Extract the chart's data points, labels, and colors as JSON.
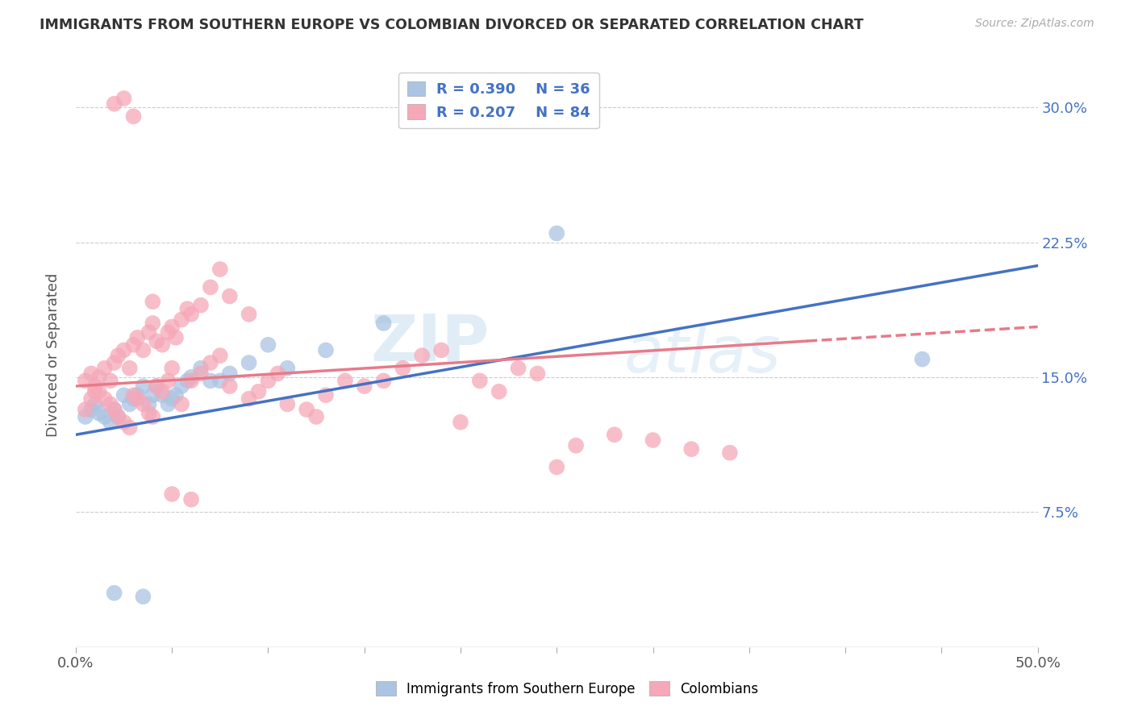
{
  "title": "IMMIGRANTS FROM SOUTHERN EUROPE VS COLOMBIAN DIVORCED OR SEPARATED CORRELATION CHART",
  "source": "Source: ZipAtlas.com",
  "ylabel": "Divorced or Separated",
  "ytick_labels": [
    "30.0%",
    "22.5%",
    "15.0%",
    "7.5%"
  ],
  "ytick_values": [
    0.3,
    0.225,
    0.15,
    0.075
  ],
  "xmin": 0.0,
  "xmax": 0.5,
  "ymin": 0.0,
  "ymax": 0.325,
  "legend1_r": "R = 0.390",
  "legend1_n": "N = 36",
  "legend2_r": "R = 0.207",
  "legend2_n": "N = 84",
  "color_blue": "#aac4e2",
  "color_pink": "#f5a8b8",
  "line_blue": "#4472C4",
  "line_pink": "#e87a8a",
  "watermark": "ZIPAtlas",
  "blue_x": [
    0.005,
    0.008,
    0.01,
    0.012,
    0.015,
    0.018,
    0.02,
    0.022,
    0.025,
    0.028,
    0.03,
    0.032,
    0.035,
    0.038,
    0.04,
    0.042,
    0.045,
    0.048,
    0.05,
    0.052,
    0.055,
    0.058,
    0.06,
    0.065,
    0.07,
    0.075,
    0.08,
    0.09,
    0.1,
    0.11,
    0.13,
    0.16,
    0.25,
    0.44,
    0.02,
    0.035
  ],
  "blue_y": [
    0.128,
    0.132,
    0.135,
    0.13,
    0.128,
    0.125,
    0.132,
    0.128,
    0.14,
    0.135,
    0.138,
    0.14,
    0.145,
    0.135,
    0.14,
    0.145,
    0.14,
    0.135,
    0.138,
    0.14,
    0.145,
    0.148,
    0.15,
    0.155,
    0.148,
    0.148,
    0.152,
    0.158,
    0.168,
    0.155,
    0.165,
    0.18,
    0.23,
    0.16,
    0.03,
    0.028
  ],
  "pink_x": [
    0.005,
    0.008,
    0.01,
    0.012,
    0.015,
    0.018,
    0.02,
    0.022,
    0.025,
    0.028,
    0.03,
    0.032,
    0.035,
    0.038,
    0.04,
    0.042,
    0.045,
    0.048,
    0.05,
    0.052,
    0.055,
    0.058,
    0.06,
    0.065,
    0.005,
    0.008,
    0.01,
    0.012,
    0.015,
    0.018,
    0.02,
    0.022,
    0.025,
    0.028,
    0.03,
    0.032,
    0.035,
    0.038,
    0.04,
    0.042,
    0.045,
    0.048,
    0.05,
    0.055,
    0.06,
    0.065,
    0.07,
    0.075,
    0.08,
    0.09,
    0.095,
    0.1,
    0.105,
    0.11,
    0.12,
    0.125,
    0.13,
    0.14,
    0.15,
    0.16,
    0.17,
    0.18,
    0.19,
    0.2,
    0.21,
    0.22,
    0.23,
    0.24,
    0.25,
    0.26,
    0.28,
    0.3,
    0.32,
    0.34,
    0.07,
    0.075,
    0.08,
    0.09,
    0.02,
    0.025,
    0.03,
    0.04,
    0.05,
    0.06
  ],
  "pink_y": [
    0.132,
    0.138,
    0.142,
    0.15,
    0.155,
    0.148,
    0.158,
    0.162,
    0.165,
    0.155,
    0.168,
    0.172,
    0.165,
    0.175,
    0.18,
    0.17,
    0.168,
    0.175,
    0.178,
    0.172,
    0.182,
    0.188,
    0.185,
    0.19,
    0.148,
    0.152,
    0.145,
    0.142,
    0.138,
    0.135,
    0.132,
    0.128,
    0.125,
    0.122,
    0.14,
    0.138,
    0.135,
    0.13,
    0.128,
    0.145,
    0.142,
    0.148,
    0.155,
    0.135,
    0.148,
    0.152,
    0.158,
    0.162,
    0.145,
    0.138,
    0.142,
    0.148,
    0.152,
    0.135,
    0.132,
    0.128,
    0.14,
    0.148,
    0.145,
    0.148,
    0.155,
    0.162,
    0.165,
    0.125,
    0.148,
    0.142,
    0.155,
    0.152,
    0.1,
    0.112,
    0.118,
    0.115,
    0.11,
    0.108,
    0.2,
    0.21,
    0.195,
    0.185,
    0.302,
    0.305,
    0.295,
    0.192,
    0.085,
    0.082
  ]
}
